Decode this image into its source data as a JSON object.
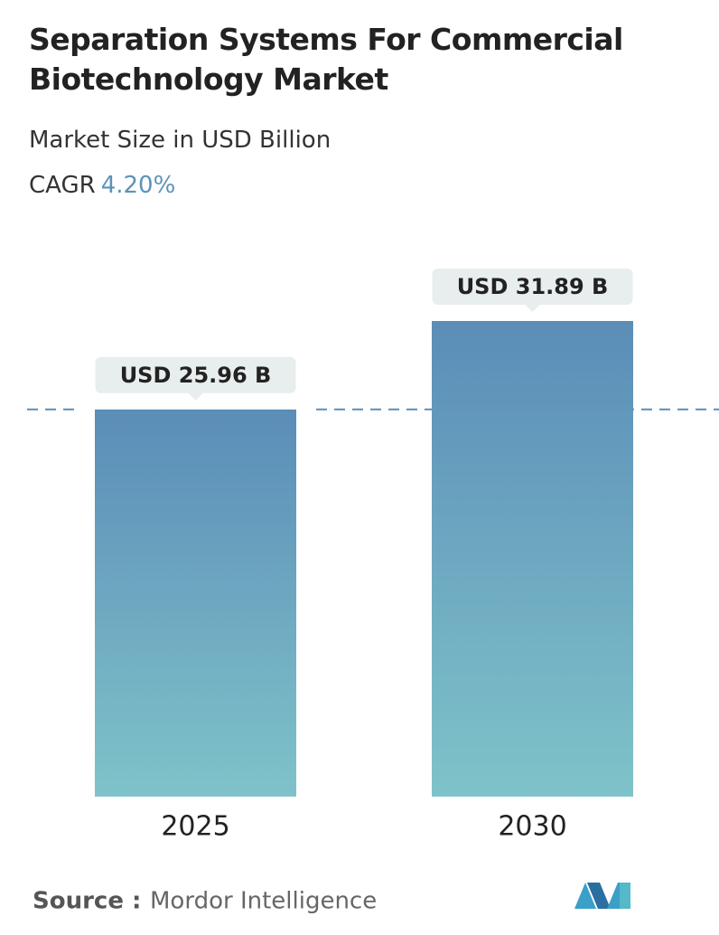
{
  "chart_data": {
    "type": "bar",
    "title": "Separation Systems For Commercial Biotechnology Market",
    "subtitle": "Market Size in USD Billion",
    "cagr_label": "CAGR",
    "cagr_value": "4.20%",
    "categories": [
      "2025",
      "2030"
    ],
    "values": [
      25.96,
      31.89
    ],
    "value_labels": [
      "USD 25.96 B",
      "USD 31.89 B"
    ],
    "color": [
      "#5b8db8",
      "#7fc3c9"
    ],
    "source_label": "Source :",
    "source": "Mordor Intelligence"
  }
}
